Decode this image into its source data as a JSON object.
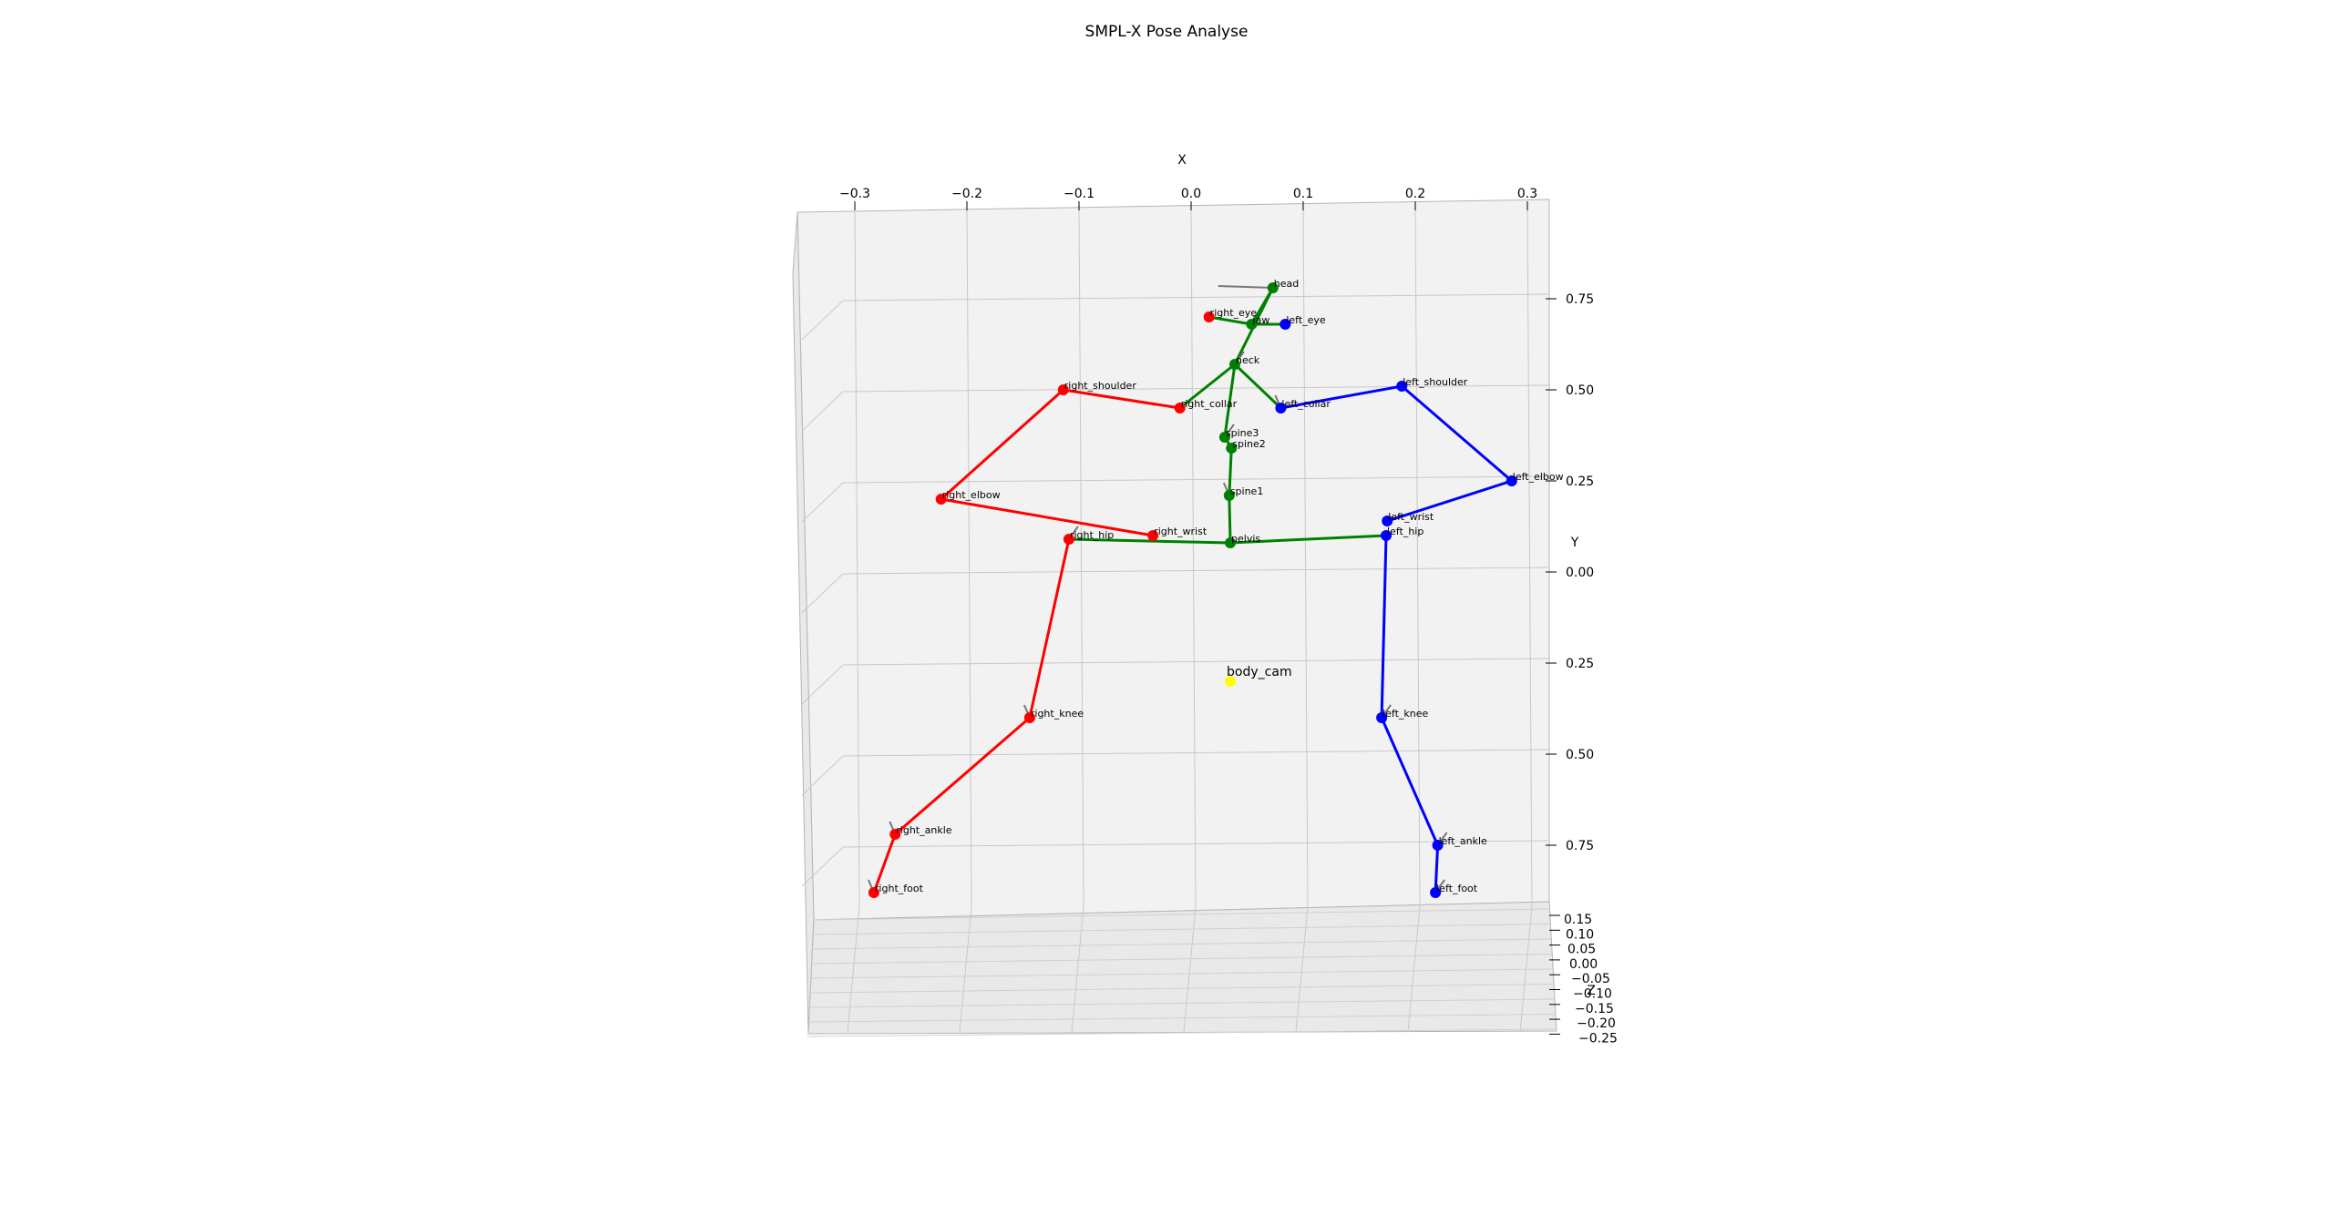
{
  "chart_data": {
    "type": "scatter3d",
    "title": "SMPL-X Pose Analyse",
    "axes": {
      "x": {
        "label": "X",
        "ticks": [
          "−0.3",
          "−0.2",
          "−0.1",
          "0.0",
          "0.1",
          "0.2",
          "0.3"
        ]
      },
      "y": {
        "label": "Y",
        "ticks": [
          "0.75",
          "0.50",
          "0.25",
          "0.00",
          "0.25",
          "0.50",
          "0.75"
        ]
      },
      "z": {
        "label": "Z",
        "ticks": [
          "0.15",
          "0.10",
          "0.05",
          "0.00",
          "−0.05",
          "−0.10",
          "−0.15",
          "−0.20",
          "−0.25"
        ]
      }
    },
    "grid": true,
    "colors": {
      "right": "#ff0000",
      "left": "#0000ff",
      "center": "#008000",
      "camera": "#ffff00",
      "pane": "#f2f2f2",
      "normal": "#777777"
    },
    "joints": [
      {
        "name": "head",
        "label": "head",
        "side": "center",
        "x": 0.073,
        "y": 0.78
      },
      {
        "name": "jaw",
        "label": "jaw",
        "side": "center",
        "x": 0.054,
        "y": 0.68
      },
      {
        "name": "right_eye",
        "label": "right_eye",
        "side": "right",
        "x": 0.016,
        "y": 0.7
      },
      {
        "name": "left_eye",
        "label": "left_eye",
        "side": "left",
        "x": 0.084,
        "y": 0.68
      },
      {
        "name": "neck",
        "label": "neck",
        "side": "center",
        "x": 0.039,
        "y": 0.57
      },
      {
        "name": "right_collar",
        "label": "right_collar",
        "side": "right",
        "x": -0.01,
        "y": 0.45
      },
      {
        "name": "left_collar",
        "label": "left_collar",
        "side": "left",
        "x": 0.08,
        "y": 0.45
      },
      {
        "name": "right_shoulder",
        "label": "right_shoulder",
        "side": "right",
        "x": -0.114,
        "y": 0.5
      },
      {
        "name": "left_shoulder",
        "label": "left_shoulder",
        "side": "left",
        "x": 0.188,
        "y": 0.51
      },
      {
        "name": "spine3",
        "label": "spine3",
        "side": "center",
        "x": 0.03,
        "y": 0.37
      },
      {
        "name": "spine2",
        "label": "spine2",
        "side": "center",
        "x": 0.036,
        "y": 0.34
      },
      {
        "name": "spine1",
        "label": "spine1",
        "side": "center",
        "x": 0.034,
        "y": 0.21
      },
      {
        "name": "right_elbow",
        "label": "right_elbow",
        "side": "right",
        "x": -0.223,
        "y": 0.2
      },
      {
        "name": "left_elbow",
        "label": "left_elbow",
        "side": "left",
        "x": 0.286,
        "y": 0.25
      },
      {
        "name": "right_wrist",
        "label": "right_wrist",
        "side": "right",
        "x": -0.034,
        "y": 0.1
      },
      {
        "name": "left_wrist",
        "label": "left_wrist",
        "side": "left",
        "x": 0.175,
        "y": 0.14
      },
      {
        "name": "pelvis",
        "label": "pelvis",
        "side": "center",
        "x": 0.035,
        "y": 0.08
      },
      {
        "name": "right_hip",
        "label": "right_hip",
        "side": "right",
        "x": -0.109,
        "y": 0.09
      },
      {
        "name": "left_hip",
        "label": "left_hip",
        "side": "left",
        "x": 0.174,
        "y": 0.1
      },
      {
        "name": "body_cam",
        "label": "body_cam",
        "side": "camera",
        "x": 0.035,
        "y": -0.3
      },
      {
        "name": "right_knee",
        "label": "right_knee",
        "side": "right",
        "x": -0.144,
        "y": -0.4
      },
      {
        "name": "left_knee",
        "label": "left_knee",
        "side": "left",
        "x": 0.17,
        "y": -0.4
      },
      {
        "name": "right_ankle",
        "label": "right_ankle",
        "side": "right",
        "x": -0.264,
        "y": -0.72
      },
      {
        "name": "left_ankle",
        "label": "left_ankle",
        "side": "left",
        "x": 0.22,
        "y": -0.75
      },
      {
        "name": "right_foot",
        "label": "right_foot",
        "side": "right",
        "x": -0.283,
        "y": -0.88
      },
      {
        "name": "left_foot",
        "label": "left_foot",
        "side": "left",
        "x": 0.218,
        "y": -0.88
      }
    ],
    "bones": [
      {
        "from": "head",
        "to": "jaw",
        "side": "center"
      },
      {
        "from": "head",
        "to": "neck",
        "side": "center"
      },
      {
        "from": "jaw",
        "to": "right_eye",
        "side": "center"
      },
      {
        "from": "jaw",
        "to": "left_eye",
        "side": "center"
      },
      {
        "from": "neck",
        "to": "right_collar",
        "side": "center"
      },
      {
        "from": "neck",
        "to": "left_collar",
        "side": "center"
      },
      {
        "from": "neck",
        "to": "spine3",
        "side": "center"
      },
      {
        "from": "spine3",
        "to": "spine2",
        "side": "center"
      },
      {
        "from": "spine2",
        "to": "spine1",
        "side": "center"
      },
      {
        "from": "spine1",
        "to": "pelvis",
        "side": "center"
      },
      {
        "from": "pelvis",
        "to": "right_hip",
        "side": "center"
      },
      {
        "from": "pelvis",
        "to": "left_hip",
        "side": "center"
      },
      {
        "from": "right_collar",
        "to": "right_shoulder",
        "side": "right"
      },
      {
        "from": "right_shoulder",
        "to": "right_elbow",
        "side": "right"
      },
      {
        "from": "right_elbow",
        "to": "right_wrist",
        "side": "right"
      },
      {
        "from": "right_hip",
        "to": "right_knee",
        "side": "right"
      },
      {
        "from": "right_knee",
        "to": "right_ankle",
        "side": "right"
      },
      {
        "from": "right_ankle",
        "to": "right_foot",
        "side": "right"
      },
      {
        "from": "left_collar",
        "to": "left_shoulder",
        "side": "left"
      },
      {
        "from": "left_shoulder",
        "to": "left_elbow",
        "side": "left"
      },
      {
        "from": "left_elbow",
        "to": "left_wrist",
        "side": "left"
      },
      {
        "from": "left_hip",
        "to": "left_knee",
        "side": "left"
      },
      {
        "from": "left_knee",
        "to": "left_ankle",
        "side": "left"
      },
      {
        "from": "left_ankle",
        "to": "left_foot",
        "side": "left"
      }
    ],
    "orientation_markers": [
      "head",
      "neck",
      "left_collar",
      "spine3",
      "spine1",
      "right_hip",
      "right_knee",
      "left_knee",
      "right_ankle",
      "left_ankle",
      "right_foot",
      "left_foot"
    ]
  }
}
